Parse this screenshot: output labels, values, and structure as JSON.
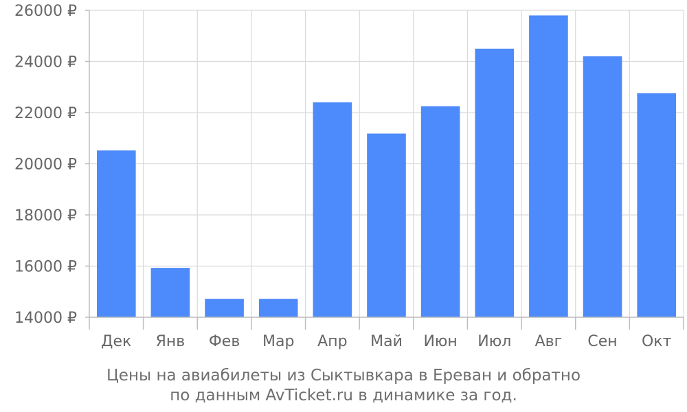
{
  "chart_data": {
    "type": "bar",
    "categories": [
      "Дек",
      "Янв",
      "Фев",
      "Мар",
      "Апр",
      "Май",
      "Июн",
      "Июл",
      "Авг",
      "Сен",
      "Окт"
    ],
    "values": [
      20520,
      15930,
      14720,
      14720,
      22400,
      21180,
      22250,
      24500,
      25800,
      24200,
      22760
    ],
    "ylim": [
      14000,
      26000
    ],
    "y_ticks": [
      "26000 ₽",
      "24000 ₽",
      "22000 ₽",
      "20000 ₽",
      "18000 ₽",
      "16000 ₽",
      "14000 ₽"
    ],
    "y_tick_values": [
      26000,
      24000,
      22000,
      20000,
      18000,
      16000,
      14000
    ],
    "grid": true,
    "bar_color": "#4d8afb",
    "caption_line1": "Цены на авиабилеты из Сыктывкара в Ереван и обратно",
    "caption_line2": "по данным AvTicket.ru в динамике за год."
  }
}
